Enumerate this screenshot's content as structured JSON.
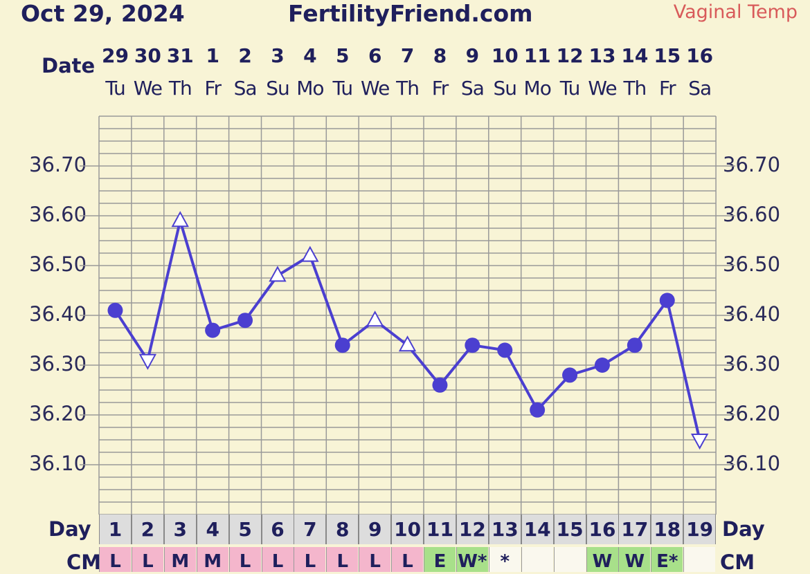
{
  "header": {
    "date": "Oct 29, 2024",
    "site": "FertilityFriend.com",
    "temp_type": "Vaginal Temp"
  },
  "labels": {
    "date": "Date",
    "day": "Day",
    "cm": "CM"
  },
  "colors": {
    "line": "#4b3fd0",
    "grid": "#999999",
    "cm_pink": "#f4b6cc",
    "cm_green": "#a8e08a",
    "cm_white": "#faf8ee"
  },
  "chart_data": {
    "type": "line",
    "title": "",
    "dates": [
      "29",
      "30",
      "31",
      "1",
      "2",
      "3",
      "4",
      "5",
      "6",
      "7",
      "8",
      "9",
      "10",
      "11",
      "12",
      "13",
      "14",
      "15",
      "16"
    ],
    "weekdays": [
      "Tu",
      "We",
      "Th",
      "Fr",
      "Sa",
      "Su",
      "Mo",
      "Tu",
      "We",
      "Th",
      "Fr",
      "Sa",
      "Su",
      "Mo",
      "Tu",
      "We",
      "Th",
      "Fr",
      "Sa"
    ],
    "cycle_days": [
      "1",
      "2",
      "3",
      "4",
      "5",
      "6",
      "7",
      "8",
      "9",
      "10",
      "11",
      "12",
      "13",
      "14",
      "15",
      "16",
      "17",
      "18",
      "19"
    ],
    "yticks": [
      "36.70",
      "36.60",
      "36.50",
      "36.40",
      "36.30",
      "36.20",
      "36.10"
    ],
    "ylim": [
      36.0,
      36.8
    ],
    "series": [
      {
        "values": [
          36.41,
          36.31,
          36.59,
          36.37,
          36.39,
          36.48,
          36.52,
          36.34,
          36.39,
          36.34,
          36.26,
          36.34,
          36.33,
          36.21,
          36.28,
          36.3,
          36.34,
          36.43,
          36.15
        ],
        "markers": [
          "circle",
          "triangle-down",
          "triangle-up",
          "circle",
          "circle",
          "triangle-up",
          "triangle-up",
          "circle",
          "triangle-up",
          "triangle-up",
          "circle",
          "circle",
          "circle",
          "circle",
          "circle",
          "circle",
          "circle",
          "circle",
          "triangle-down"
        ]
      }
    ],
    "cervical_mucus": [
      "L",
      "L",
      "M",
      "M",
      "L",
      "L",
      "L",
      "L",
      "L",
      "L",
      "E",
      "W*",
      "*",
      "",
      "",
      "W",
      "W",
      "E*",
      ""
    ],
    "cm_colors": [
      "pink",
      "pink",
      "pink",
      "pink",
      "pink",
      "pink",
      "pink",
      "pink",
      "pink",
      "pink",
      "green",
      "green",
      "white",
      "white",
      "white",
      "green",
      "green",
      "green",
      "white"
    ]
  }
}
